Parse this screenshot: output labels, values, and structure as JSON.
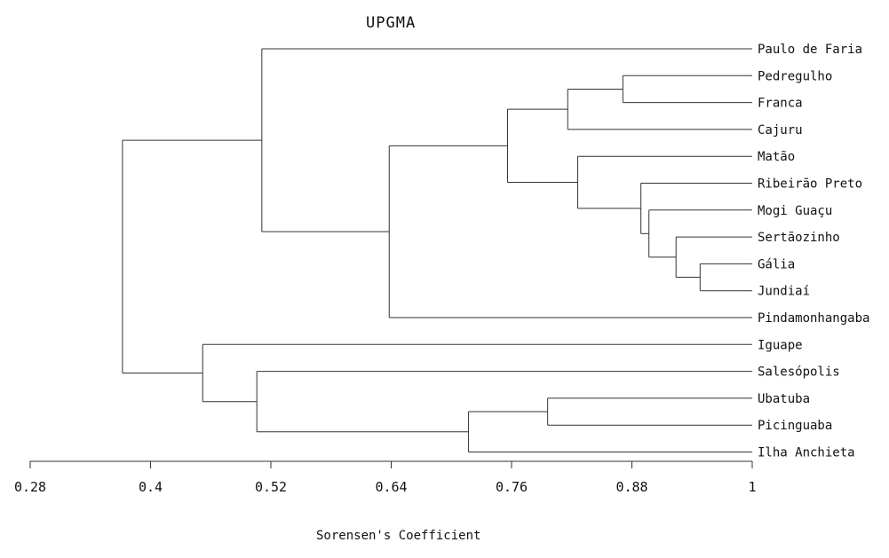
{
  "title": "UPGMA",
  "xlabel": "Sorensen's Coefficient",
  "ticks": [
    "0.28",
    "0.4",
    "0.52",
    "0.64",
    "0.76",
    "0.88",
    "1"
  ],
  "leaves": [
    "Paulo de Faria",
    "Pedregulho",
    "Franca",
    "Cajuru",
    "Matão",
    "Ribeirão Preto",
    "Mogi Guaçu",
    "Sertãozinho",
    "Gália",
    "Jundiaí",
    "Pindamonhangaba",
    "Iguape",
    "Salesópolis",
    "Ubatuba",
    "Picinguaba",
    "Ilha Anchieta"
  ],
  "chart_data": {
    "type": "dendrogram",
    "method": "UPGMA",
    "xlim": [
      0.28,
      1.0
    ],
    "merges": [
      {
        "id": "A",
        "children": [
          "Pedregulho",
          "Franca"
        ],
        "height": 0.871
      },
      {
        "id": "B",
        "children": [
          "A",
          "Cajuru"
        ],
        "height": 0.816
      },
      {
        "id": "C",
        "children": [
          "Gália",
          "Jundiaí"
        ],
        "height": 0.948
      },
      {
        "id": "D",
        "children": [
          "Sertãozinho",
          "C"
        ],
        "height": 0.924
      },
      {
        "id": "E",
        "children": [
          "Mogi Guaçu",
          "D"
        ],
        "height": 0.897
      },
      {
        "id": "F",
        "children": [
          "Ribeirão Preto",
          "E"
        ],
        "height": 0.889
      },
      {
        "id": "G",
        "children": [
          "Matão",
          "F"
        ],
        "height": 0.826
      },
      {
        "id": "H",
        "children": [
          "B",
          "G"
        ],
        "height": 0.756
      },
      {
        "id": "I",
        "children": [
          "H",
          "Pindamonhangaba"
        ],
        "height": 0.638
      },
      {
        "id": "J",
        "children": [
          "Paulo de Faria",
          "I"
        ],
        "height": 0.511
      },
      {
        "id": "K",
        "children": [
          "Ubatuba",
          "Picinguaba"
        ],
        "height": 0.796
      },
      {
        "id": "L",
        "children": [
          "K",
          "Ilha Anchieta"
        ],
        "height": 0.717
      },
      {
        "id": "M",
        "children": [
          "Salesópolis",
          "L"
        ],
        "height": 0.506
      },
      {
        "id": "N",
        "children": [
          "Iguape",
          "M"
        ],
        "height": 0.452
      },
      {
        "id": "O",
        "children": [
          "J",
          "N"
        ],
        "height": 0.372
      }
    ]
  }
}
